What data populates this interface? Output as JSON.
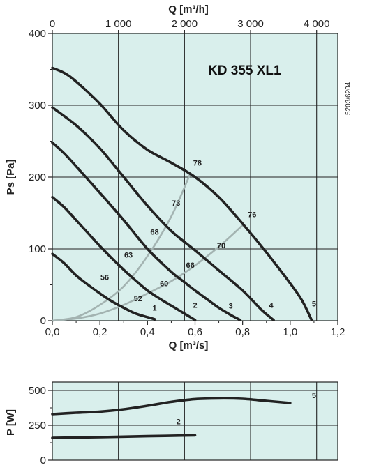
{
  "chart_data": [
    {
      "type": "line",
      "title": "KD 355 XL1",
      "doc_code": "5203/6204",
      "xlabel": "Q [m³/s]",
      "x2label": "Q [m³/h]",
      "ylabel": "Ps [Pa]",
      "xlim": [
        0,
        1.2
      ],
      "ylim": [
        0,
        400
      ],
      "x2lim": [
        0,
        4320
      ],
      "xticks": [
        "0,0",
        "0,2",
        "0,4",
        "0,6",
        "0,8",
        "1,0",
        "1,2"
      ],
      "x2ticks": [
        "0",
        "1 000",
        "2 000",
        "3 000",
        "4 000"
      ],
      "yticks": [
        "0",
        "100",
        "200",
        "300",
        "400"
      ],
      "grid": true,
      "background": "#d9efec",
      "line_color": "#222222",
      "efficiency_color": "#a3b3b1",
      "series": [
        {
          "name": "1",
          "points": [
            [
              0.0,
              93
            ],
            [
              0.05,
              80
            ],
            [
              0.1,
              63
            ],
            [
              0.15,
              50
            ],
            [
              0.2,
              38
            ],
            [
              0.25,
              27
            ],
            [
              0.3,
              18
            ],
            [
              0.35,
              10
            ],
            [
              0.4,
              5
            ],
            [
              0.43,
              2
            ]
          ]
        },
        {
          "name": "2",
          "points": [
            [
              0.0,
              172
            ],
            [
              0.05,
              158
            ],
            [
              0.1,
              140
            ],
            [
              0.15,
              122
            ],
            [
              0.2,
              104
            ],
            [
              0.25,
              87
            ],
            [
              0.3,
              71
            ],
            [
              0.35,
              56
            ],
            [
              0.4,
              42
            ],
            [
              0.45,
              31
            ],
            [
              0.5,
              21
            ],
            [
              0.55,
              11
            ],
            [
              0.6,
              1
            ]
          ]
        },
        {
          "name": "3",
          "points": [
            [
              0.0,
              248
            ],
            [
              0.05,
              233
            ],
            [
              0.1,
              215
            ],
            [
              0.2,
              178
            ],
            [
              0.3,
              140
            ],
            [
              0.4,
              100
            ],
            [
              0.5,
              68
            ],
            [
              0.55,
              55
            ],
            [
              0.6,
              42
            ],
            [
              0.65,
              30
            ],
            [
              0.7,
              18
            ],
            [
              0.75,
              8
            ],
            [
              0.79,
              1
            ]
          ]
        },
        {
          "name": "4",
          "points": [
            [
              0.0,
              297
            ],
            [
              0.1,
              272
            ],
            [
              0.2,
              240
            ],
            [
              0.3,
              200
            ],
            [
              0.4,
              160
            ],
            [
              0.5,
              125
            ],
            [
              0.6,
              98
            ],
            [
              0.7,
              70
            ],
            [
              0.8,
              42
            ],
            [
              0.88,
              15
            ],
            [
              0.93,
              1
            ]
          ]
        },
        {
          "name": "5",
          "points": [
            [
              0.0,
              352
            ],
            [
              0.05,
              345
            ],
            [
              0.1,
              333
            ],
            [
              0.2,
              302
            ],
            [
              0.3,
              265
            ],
            [
              0.4,
              238
            ],
            [
              0.5,
              220
            ],
            [
              0.6,
              200
            ],
            [
              0.7,
              172
            ],
            [
              0.8,
              135
            ],
            [
              0.9,
              95
            ],
            [
              1.0,
              52
            ],
            [
              1.05,
              28
            ],
            [
              1.09,
              1
            ]
          ]
        }
      ],
      "efficiency_curves": [
        {
          "points": [
            [
              0.0,
              0
            ],
            [
              0.1,
              5
            ],
            [
              0.2,
              22
            ],
            [
              0.3,
              48
            ],
            [
              0.4,
              90
            ],
            [
              0.5,
              145
            ],
            [
              0.58,
              205
            ]
          ]
        },
        {
          "points": [
            [
              0.0,
              0
            ],
            [
              0.1,
              3
            ],
            [
              0.2,
              10
            ],
            [
              0.3,
              22
            ],
            [
              0.4,
              38
            ],
            [
              0.5,
              55
            ],
            [
              0.6,
              77
            ],
            [
              0.7,
              103
            ],
            [
              0.8,
              133
            ]
          ]
        }
      ],
      "point_labels": [
        {
          "text": "56",
          "x": 0.22,
          "y": 57
        },
        {
          "text": "52",
          "x": 0.36,
          "y": 27
        },
        {
          "text": "63",
          "x": 0.32,
          "y": 88
        },
        {
          "text": "60",
          "x": 0.47,
          "y": 48
        },
        {
          "text": "68",
          "x": 0.43,
          "y": 120
        },
        {
          "text": "66",
          "x": 0.58,
          "y": 74
        },
        {
          "text": "73",
          "x": 0.52,
          "y": 160
        },
        {
          "text": "70",
          "x": 0.71,
          "y": 101
        },
        {
          "text": "78",
          "x": 0.61,
          "y": 216
        },
        {
          "text": "76",
          "x": 0.84,
          "y": 144
        }
      ],
      "end_labels": [
        {
          "text": "1",
          "x": 0.43,
          "y": 14
        },
        {
          "text": "2",
          "x": 0.6,
          "y": 18
        },
        {
          "text": "3",
          "x": 0.75,
          "y": 17
        },
        {
          "text": "4",
          "x": 0.92,
          "y": 18
        },
        {
          "text": "5",
          "x": 1.1,
          "y": 20
        }
      ]
    },
    {
      "type": "line",
      "ylabel": "P [W]",
      "xlim": [
        0,
        1.2
      ],
      "ylim": [
        0,
        560
      ],
      "yticks": [
        "0",
        "250",
        "500"
      ],
      "grid": true,
      "series": [
        {
          "name": "5",
          "points": [
            [
              0.0,
              330
            ],
            [
              0.1,
              340
            ],
            [
              0.2,
              348
            ],
            [
              0.3,
              365
            ],
            [
              0.4,
              390
            ],
            [
              0.5,
              418
            ],
            [
              0.6,
              438
            ],
            [
              0.7,
              443
            ],
            [
              0.8,
              440
            ],
            [
              0.9,
              425
            ],
            [
              1.0,
              410
            ]
          ]
        },
        {
          "name": "2",
          "points": [
            [
              0.0,
              160
            ],
            [
              0.2,
              165
            ],
            [
              0.4,
              172
            ],
            [
              0.6,
              178
            ]
          ]
        }
      ],
      "end_labels": [
        {
          "text": "5",
          "x": 1.1,
          "y": 445
        },
        {
          "text": "2",
          "x": 0.53,
          "y": 258
        }
      ]
    }
  ]
}
